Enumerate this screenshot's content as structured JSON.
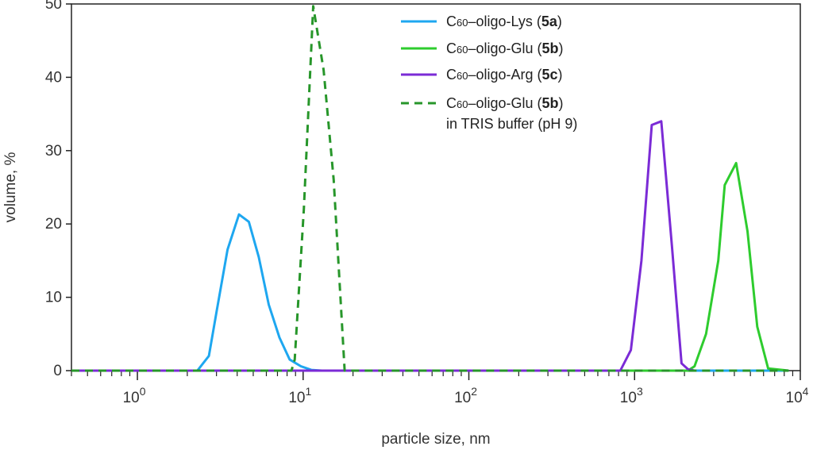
{
  "chart_data": {
    "type": "line",
    "xlabel": "particle size, nm",
    "ylabel": "volume, %",
    "x_scale": "log",
    "xlim": [
      0.4,
      10000
    ],
    "ylim": [
      0,
      50
    ],
    "grid": false,
    "legend_position": "top-center",
    "x_ticks": [
      {
        "value": 1,
        "base": "10",
        "exp": "0"
      },
      {
        "value": 10,
        "base": "10",
        "exp": "1"
      },
      {
        "value": 100,
        "base": "10",
        "exp": "2"
      },
      {
        "value": 1000,
        "base": "10",
        "exp": "3"
      },
      {
        "value": 10000,
        "base": "10",
        "exp": "4"
      }
    ],
    "y_ticks": [
      {
        "value": 0,
        "label": "0"
      },
      {
        "value": 10,
        "label": "10"
      },
      {
        "value": 20,
        "label": "20"
      },
      {
        "value": 30,
        "label": "30"
      },
      {
        "value": 40,
        "label": "40"
      },
      {
        "value": 50,
        "label": "50"
      }
    ],
    "series": [
      {
        "key": "lys",
        "label_prefix": "C",
        "label_sub": "60",
        "label_main": "–oligo-Lys (",
        "label_bold": "5a",
        "label_end": ")",
        "label_line2": "",
        "color": "#1ea7f0",
        "dash": "solid",
        "points": [
          [
            0.4,
            0
          ],
          [
            2.3,
            0
          ],
          [
            2.7,
            2
          ],
          [
            3.0,
            8
          ],
          [
            3.5,
            16.5
          ],
          [
            4.1,
            21.3
          ],
          [
            4.7,
            20.3
          ],
          [
            5.4,
            15.5
          ],
          [
            6.2,
            9
          ],
          [
            7.2,
            4.5
          ],
          [
            8.3,
            1.5
          ],
          [
            9.7,
            0.6
          ],
          [
            11.2,
            0.1
          ],
          [
            13,
            0
          ],
          [
            8500,
            0
          ]
        ]
      },
      {
        "key": "glu",
        "label_prefix": "C",
        "label_sub": "60",
        "label_main": "–oligo-Glu (",
        "label_bold": "5b",
        "label_end": ")",
        "label_line2": "",
        "color": "#2ecc2e",
        "dash": "solid",
        "points": [
          [
            0.4,
            0
          ],
          [
            2100,
            0
          ],
          [
            2300,
            0.6
          ],
          [
            2700,
            5
          ],
          [
            3200,
            15
          ],
          [
            3500,
            25.3
          ],
          [
            4100,
            28.3
          ],
          [
            4800,
            19
          ],
          [
            5500,
            6
          ],
          [
            6400,
            0.3
          ],
          [
            8500,
            0
          ]
        ]
      },
      {
        "key": "arg",
        "label_prefix": "C",
        "label_sub": "60",
        "label_main": "–oligo-Arg (",
        "label_bold": "5c",
        "label_end": ")",
        "label_line2": "",
        "color": "#7b2bd6",
        "dash": "solid",
        "points": [
          [
            0.4,
            0
          ],
          [
            820,
            0
          ],
          [
            950,
            2.8
          ],
          [
            1100,
            15
          ],
          [
            1270,
            33.5
          ],
          [
            1450,
            34
          ],
          [
            1680,
            17
          ],
          [
            1920,
            1
          ],
          [
            2100,
            0.2
          ],
          [
            2300,
            0
          ]
        ]
      },
      {
        "key": "glu_tris",
        "label_prefix": "C",
        "label_sub": "60",
        "label_main": "–oligo-Glu (",
        "label_bold": "5b",
        "label_end": ")",
        "label_line2": "in TRIS buffer (pH 9)",
        "color": "#27962a",
        "dash": "dashed",
        "points": [
          [
            0.4,
            0
          ],
          [
            8.5,
            0
          ],
          [
            8.9,
            1.5
          ],
          [
            10.1,
            22
          ],
          [
            11.5,
            49.7
          ],
          [
            13.3,
            41
          ],
          [
            15.3,
            26
          ],
          [
            17.8,
            0
          ],
          [
            8500,
            0
          ]
        ]
      }
    ]
  }
}
